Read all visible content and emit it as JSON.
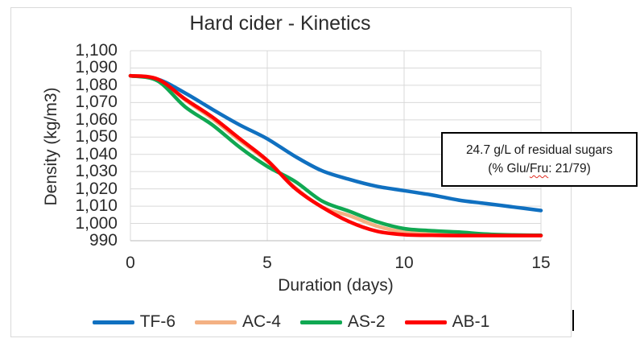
{
  "chart_data": {
    "type": "line",
    "title": "Hard cider - Kinetics",
    "xlabel": "Duration (days)",
    "ylabel": "Density (kg/m3)",
    "xlim": [
      0,
      15
    ],
    "ylim": [
      990,
      1100
    ],
    "grid": true,
    "legend_position": "bottom",
    "x_ticks": [
      0,
      5,
      10,
      15
    ],
    "x_tick_labels": [
      "0",
      "5",
      "10",
      "15"
    ],
    "y_ticks": [
      1100,
      1090,
      1080,
      1070,
      1060,
      1050,
      1040,
      1030,
      1020,
      1010,
      1000,
      990
    ],
    "y_tick_labels": [
      "1,100",
      "1,090",
      "1,080",
      "1,070",
      "1,060",
      "1,050",
      "1,040",
      "1,030",
      "1,020",
      "1,010",
      "1,000",
      "990"
    ],
    "x": [
      0,
      1,
      2,
      3,
      4,
      5,
      6,
      7,
      8,
      9,
      10,
      11,
      12,
      13,
      14,
      15
    ],
    "series": [
      {
        "name": "TF-6",
        "color": "#1070C0",
        "values": [
          1085.5,
          1083.5,
          1075.5,
          1066,
          1057,
          1049,
          1039,
          1030.5,
          1025.5,
          1021.5,
          1019,
          1016.5,
          1013.5,
          1011.5,
          1009.5,
          1007.5
        ]
      },
      {
        "name": "AC-4",
        "color": "#F4B183",
        "values": [
          1085.5,
          1083.5,
          1071.5,
          1060.5,
          1048,
          1036,
          1021,
          1009.5,
          1004.5,
          998.5,
          995,
          994,
          993.4,
          993.1,
          993,
          993
        ]
      },
      {
        "name": "AS-2",
        "color": "#10A852",
        "values": [
          1085.5,
          1082.5,
          1067.5,
          1057,
          1044,
          1033,
          1024.5,
          1013,
          1007,
          1001,
          997,
          995.8,
          995,
          993.8,
          993.3,
          993.1
        ]
      },
      {
        "name": "AB-1",
        "color": "#FE0000",
        "values": [
          1085.5,
          1083.5,
          1072,
          1061.5,
          1049,
          1036.5,
          1020.5,
          1009.5,
          1001,
          995.5,
          993.5,
          993.1,
          993,
          993,
          993,
          993
        ]
      }
    ]
  },
  "annotation": {
    "line1": "24.7 g/L of residual sugars",
    "line2_prefix": "(% Glu/",
    "line2_spellcheck_word": "Fru",
    "line2_suffix": ": 21/79)"
  },
  "colors": {
    "gridline": "#d9d9d9",
    "axis_line": "#c6c6c6",
    "chart_border": "#d9d9d9",
    "text": "#2b2b2b",
    "annotation_border": "#000000",
    "spellcheck_underline": "#e02b20",
    "background": "#ffffff"
  }
}
